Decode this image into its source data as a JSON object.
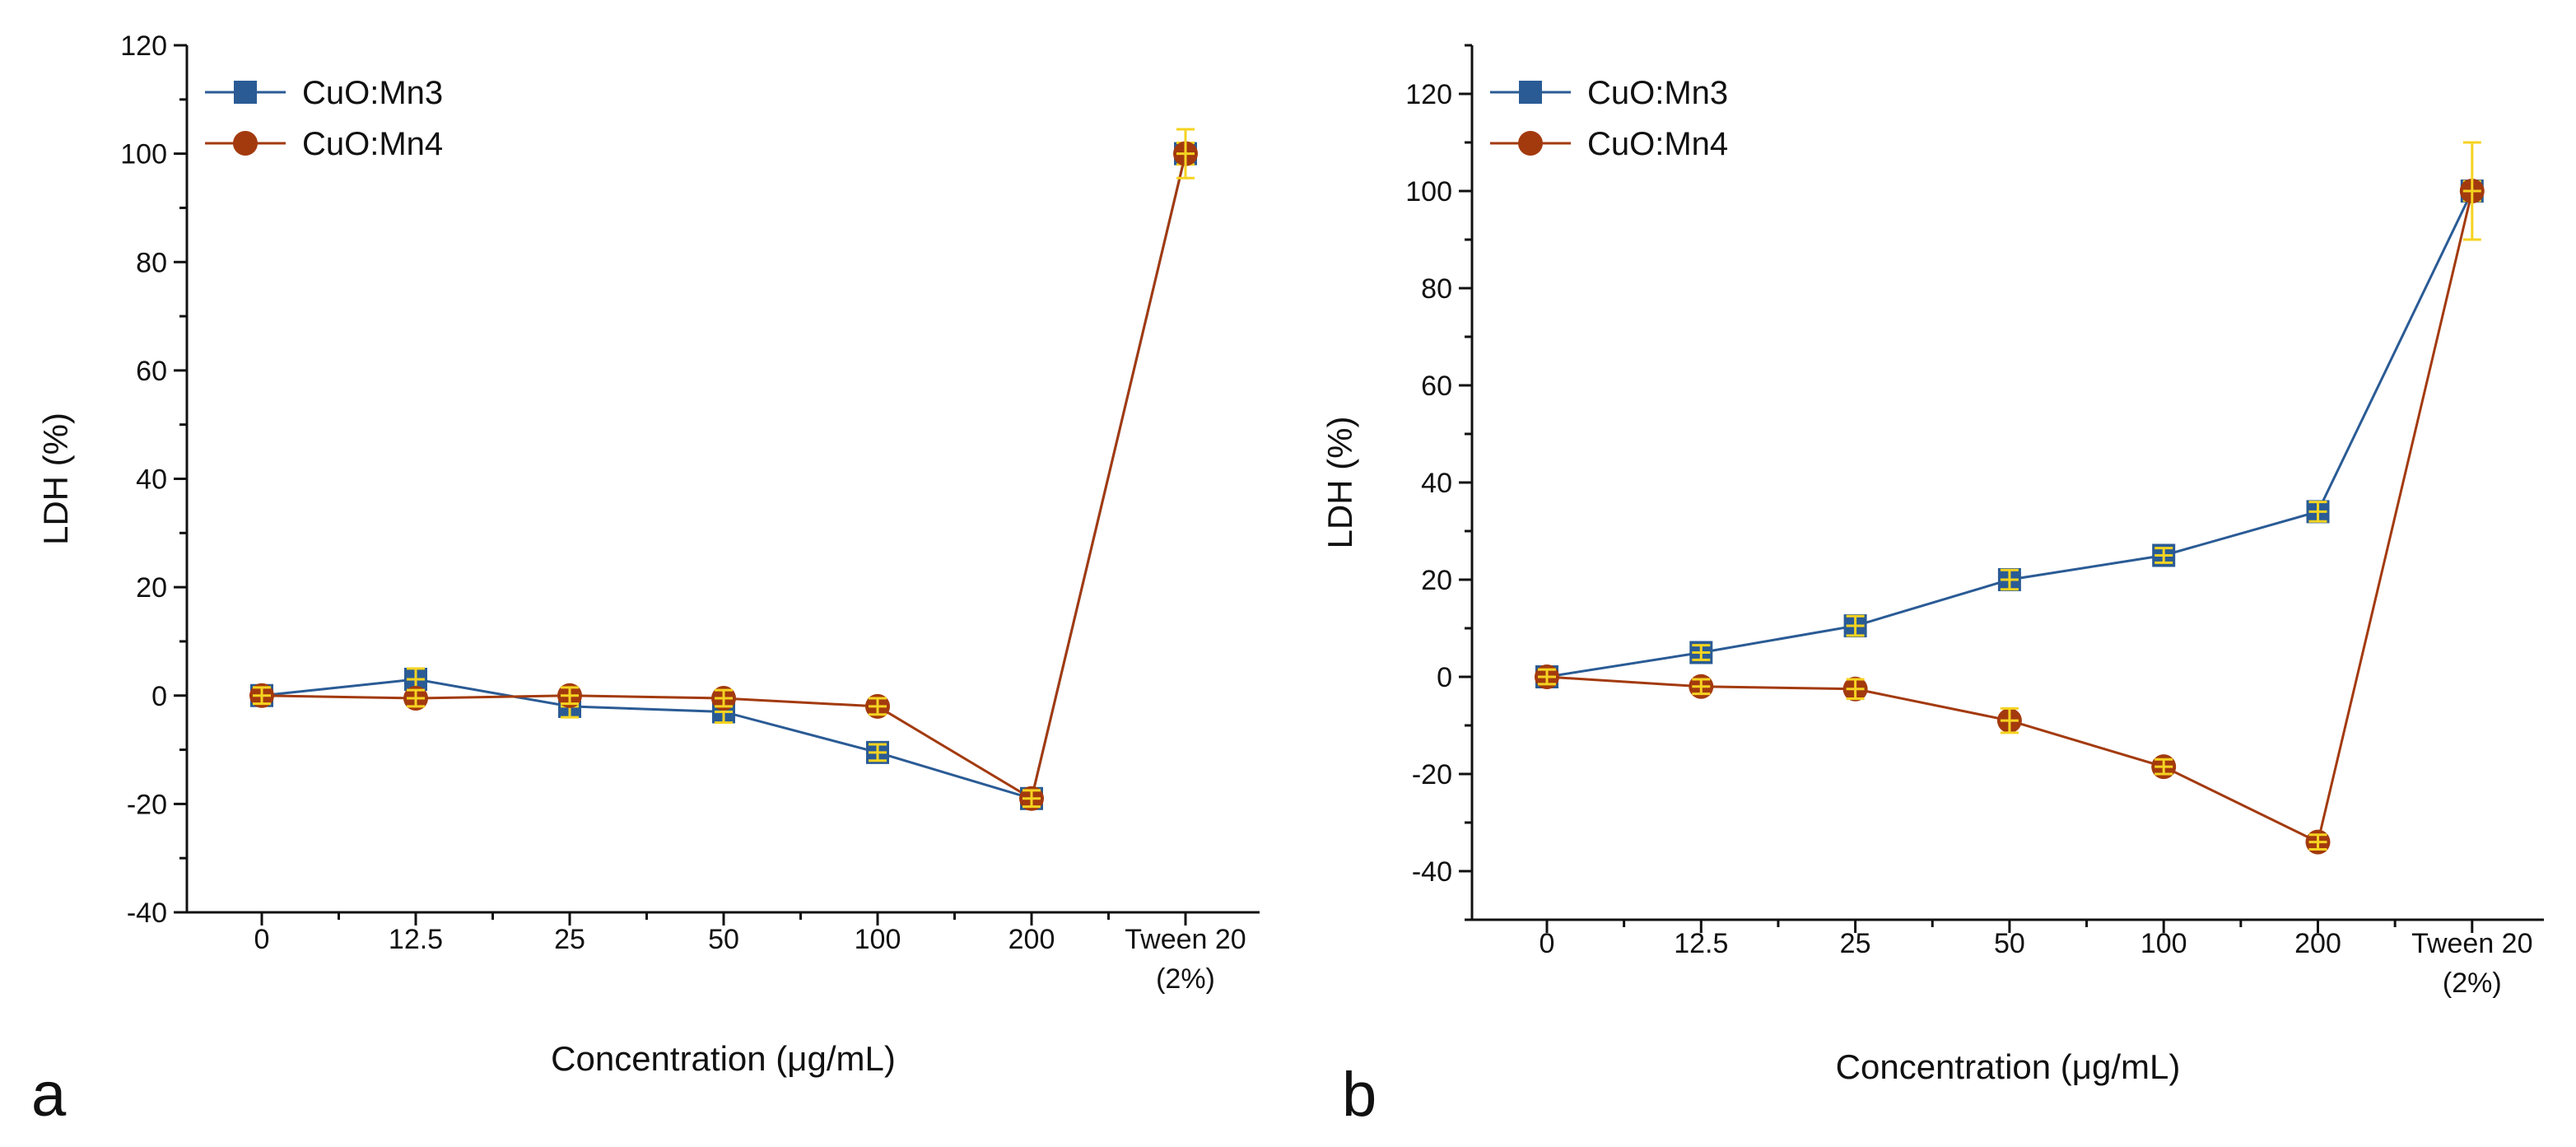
{
  "figure": {
    "panels_note": "Two-panel LDH cytotoxicity figure"
  },
  "colors": {
    "mn3": "#2a5b95",
    "mn4": "#a33a0e",
    "error_bar": "#f5d321",
    "axis": "#111111"
  },
  "chart_data": [
    {
      "id": "a",
      "type": "line",
      "panel_label": "a",
      "title": "",
      "xlabel": "Concentration (μg/mL)",
      "ylabel": "LDH (%)",
      "categories": [
        "0",
        "12.5",
        "25",
        "50",
        "100",
        "200",
        "Tween 20|(2%)"
      ],
      "ylim": [
        -40,
        120
      ],
      "yticks": [
        -40,
        -20,
        0,
        20,
        40,
        60,
        80,
        100,
        120
      ],
      "ytick_labels": [
        "-40",
        "-20",
        "0",
        "20",
        "40",
        "60",
        "80",
        "100",
        "120"
      ],
      "legend_position": "top-left",
      "grid": false,
      "series": [
        {
          "name": "CuO:Mn3",
          "marker": "square",
          "values": [
            0,
            3,
            -2,
            -3,
            -10.5,
            -19,
            100
          ],
          "errors": [
            1.5,
            2,
            2,
            2,
            1.5,
            1.5,
            2
          ]
        },
        {
          "name": "CuO:Mn4",
          "marker": "circle",
          "values": [
            0,
            -0.5,
            0,
            -0.5,
            -2,
            -19,
            100
          ],
          "errors": [
            1.5,
            1.5,
            1.5,
            1.5,
            1.5,
            1.5,
            4.5
          ]
        }
      ]
    },
    {
      "id": "b",
      "type": "line",
      "panel_label": "b",
      "title": "",
      "xlabel": "Concentration (μg/mL)",
      "ylabel": "LDH (%)",
      "categories": [
        "0",
        "12.5",
        "25",
        "50",
        "100",
        "200",
        "Tween 20|(2%)"
      ],
      "ylim": [
        -50,
        130
      ],
      "yticks": [
        -40,
        -20,
        0,
        20,
        40,
        60,
        80,
        100,
        120
      ],
      "ytick_labels": [
        "-40",
        "-20",
        "0",
        "20",
        "40",
        "60",
        "80",
        "100",
        "120"
      ],
      "legend_position": "top-left",
      "grid": false,
      "series": [
        {
          "name": "CuO:Mn3",
          "marker": "square",
          "values": [
            0,
            5,
            10.5,
            20,
            25,
            34,
            100
          ],
          "errors": [
            1.5,
            1.5,
            2,
            2,
            1.5,
            2,
            2
          ]
        },
        {
          "name": "CuO:Mn4",
          "marker": "circle",
          "values": [
            0,
            -2,
            -2.5,
            -9,
            -18.5,
            -34,
            100
          ],
          "errors": [
            1.5,
            1.5,
            2,
            2.5,
            1.5,
            1.5,
            10
          ]
        }
      ]
    }
  ]
}
